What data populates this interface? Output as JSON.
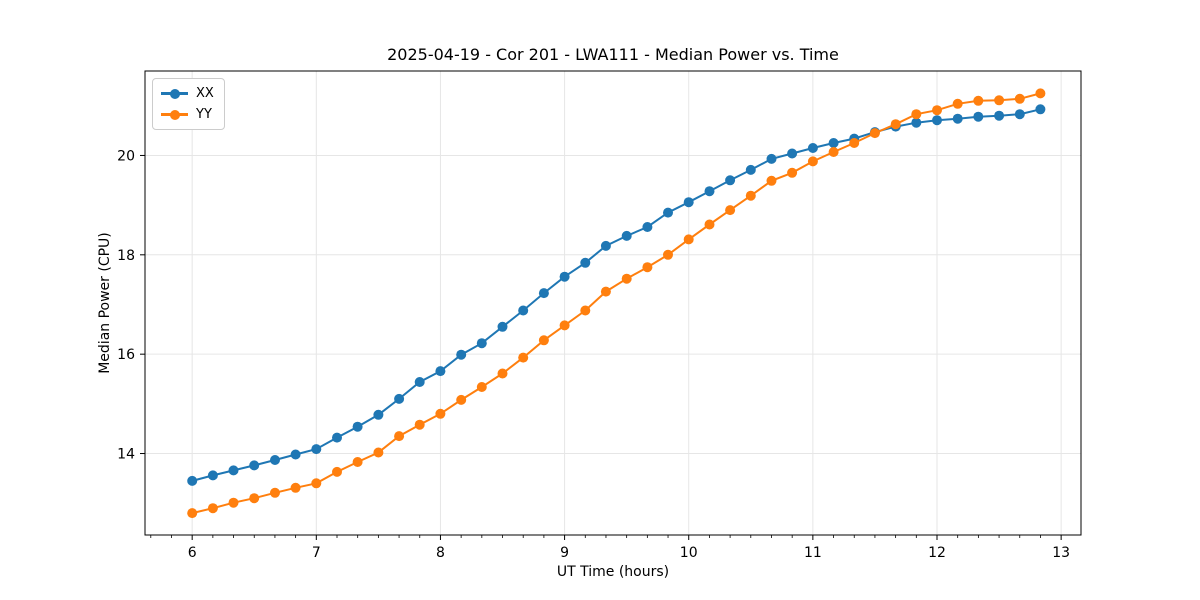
{
  "figure": {
    "background": "#ffffff",
    "text_color": "#000000",
    "spine_color": "#000000"
  },
  "chart_data": {
    "type": "line",
    "title": "2025-04-19 - Cor 201 - LWA111 - Median Power vs. Time",
    "xlabel": "UT Time (hours)",
    "ylabel": "Median Power (CPU)",
    "xlim": [
      5.62,
      13.16
    ],
    "ylim": [
      12.36,
      21.7
    ],
    "x_ticks": [
      6,
      7,
      8,
      9,
      10,
      11,
      12,
      13
    ],
    "y_ticks": [
      14,
      16,
      18,
      20
    ],
    "x_minor_subdivisions": 6,
    "grid": true,
    "grid_color": "#e6e6e6",
    "legend_position": "upper-left",
    "x": [
      6.0,
      6.167,
      6.333,
      6.5,
      6.667,
      6.833,
      7.0,
      7.167,
      7.333,
      7.5,
      7.667,
      7.833,
      8.0,
      8.167,
      8.333,
      8.5,
      8.667,
      8.833,
      9.0,
      9.167,
      9.333,
      9.5,
      9.667,
      9.833,
      10.0,
      10.167,
      10.333,
      10.5,
      10.667,
      10.833,
      11.0,
      11.167,
      11.333,
      11.5,
      11.667,
      11.833,
      12.0,
      12.167,
      12.333,
      12.5,
      12.667,
      12.833
    ],
    "series": [
      {
        "name": "XX",
        "color": "#1f77b4",
        "marker": "circle",
        "values": [
          13.45,
          13.56,
          13.66,
          13.76,
          13.87,
          13.98,
          14.09,
          14.32,
          14.54,
          14.78,
          15.1,
          15.44,
          15.66,
          15.99,
          16.22,
          16.55,
          16.88,
          17.23,
          17.56,
          17.84,
          18.18,
          18.38,
          18.56,
          18.85,
          19.06,
          19.28,
          19.5,
          19.71,
          19.93,
          20.04,
          20.15,
          20.25,
          20.34,
          20.47,
          20.58,
          20.66,
          20.71,
          20.74,
          20.78,
          20.8,
          20.83,
          20.93
        ]
      },
      {
        "name": "YY",
        "color": "#ff7f0e",
        "marker": "circle",
        "values": [
          12.8,
          12.9,
          13.01,
          13.1,
          13.21,
          13.31,
          13.4,
          13.63,
          13.83,
          14.02,
          14.35,
          14.58,
          14.8,
          15.08,
          15.34,
          15.61,
          15.93,
          16.28,
          16.58,
          16.88,
          17.26,
          17.52,
          17.75,
          18.0,
          18.31,
          18.61,
          18.9,
          19.19,
          19.49,
          19.65,
          19.88,
          20.07,
          20.25,
          20.45,
          20.63,
          20.83,
          20.91,
          21.04,
          21.1,
          21.11,
          21.14,
          21.25
        ]
      }
    ]
  }
}
